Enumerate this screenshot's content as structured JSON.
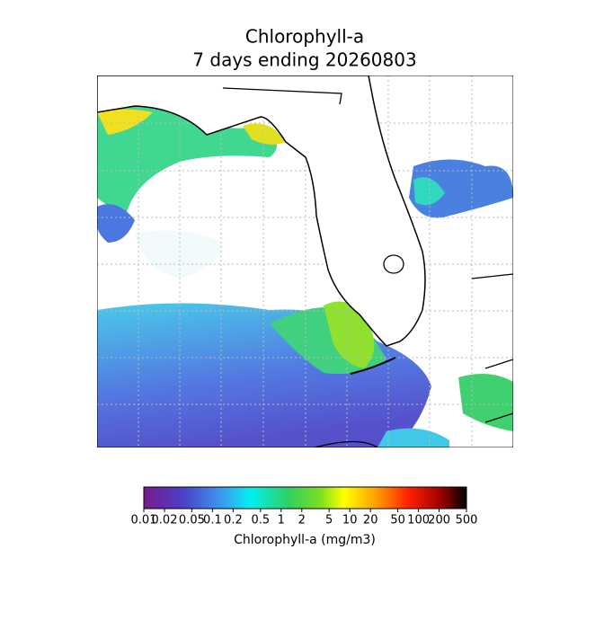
{
  "title": {
    "line1": "Chlorophyll-a",
    "line2": "7 days ending 20260803"
  },
  "colorbar": {
    "label": "Chlorophyll-a (mg/m3)",
    "scale": "log",
    "lim": [
      0.01,
      500
    ],
    "ticks": [
      0.01,
      0.02,
      0.05,
      0.1,
      0.2,
      0.5,
      1,
      2,
      5,
      10,
      20,
      50,
      100,
      200,
      500
    ]
  }
}
